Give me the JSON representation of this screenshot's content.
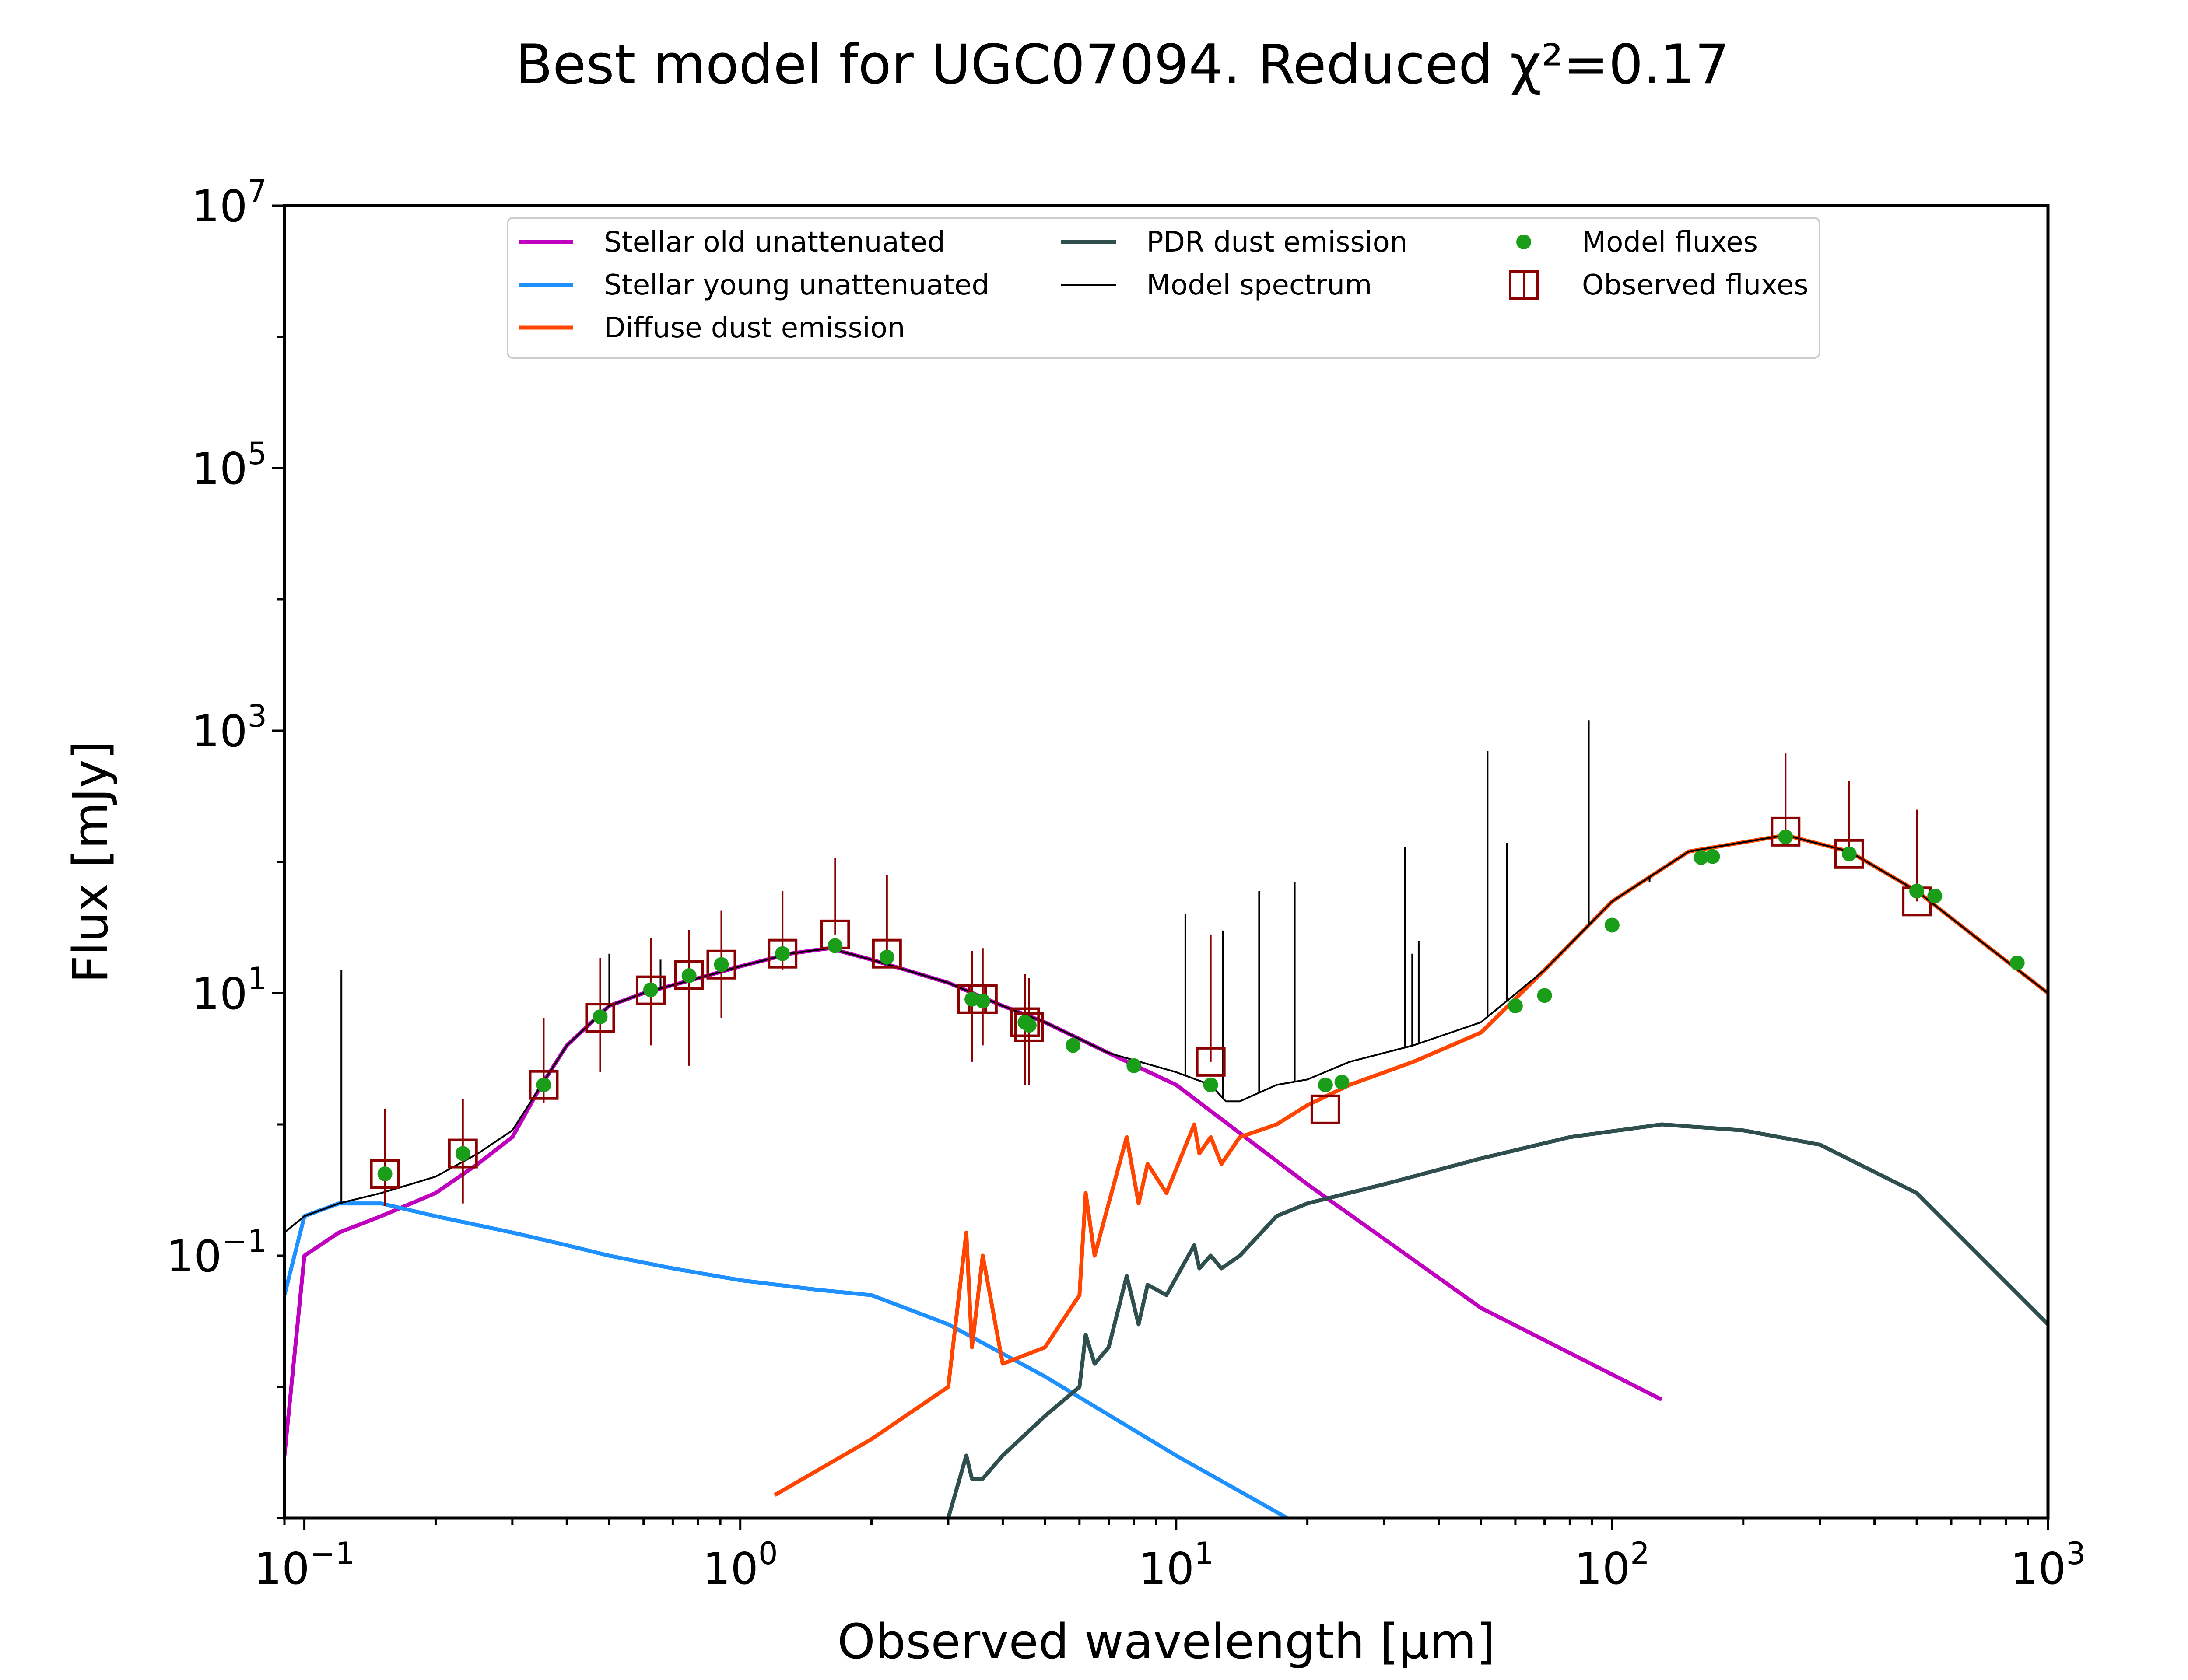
{
  "chart_data": {
    "type": "line",
    "title": "Best model for UGC07094. Reduced χ²=0.17",
    "xlabel": "Observed wavelength [μm]",
    "ylabel": "Flux [mJy]",
    "x_scale": "log",
    "y_scale": "log",
    "xlim": [
      0.09,
      1000
    ],
    "ylim": [
      0.001,
      10000000
    ],
    "x_ticks": [
      {
        "base": "10",
        "exp": "−1"
      },
      {
        "base": "10",
        "exp": "0"
      },
      {
        "base": "10",
        "exp": "1"
      },
      {
        "base": "10",
        "exp": "2"
      },
      {
        "base": "10",
        "exp": "3"
      }
    ],
    "y_ticks": [
      {
        "base": "10",
        "exp": "−1",
        "value": 0.1
      },
      {
        "base": "10",
        "exp": "1",
        "value": 10
      },
      {
        "base": "10",
        "exp": "3",
        "value": 1000
      },
      {
        "base": "10",
        "exp": "5",
        "value": 100000
      },
      {
        "base": "10",
        "exp": "7",
        "value": 10000000
      }
    ],
    "grid": false,
    "legend_position": "top-center",
    "legend": [
      {
        "label": "Stellar old unattenuated",
        "color": "#bf00bf",
        "kind": "line"
      },
      {
        "label": "Stellar young unattenuated",
        "color": "#1e90ff",
        "kind": "line"
      },
      {
        "label": "Diffuse dust emission",
        "color": "#ff4500",
        "kind": "line"
      },
      {
        "label": "PDR dust emission",
        "color": "#2f4f4f",
        "kind": "line"
      },
      {
        "label": "Model spectrum",
        "color": "#000000",
        "kind": "thin-line"
      },
      {
        "label": "Model fluxes",
        "color": "#1a9e1a",
        "kind": "dot"
      },
      {
        "label": "Observed fluxes",
        "color": "#8b0000",
        "kind": "square"
      }
    ],
    "series": [
      {
        "name": "Stellar old unattenuated",
        "color": "#bf00bf",
        "x": [
          0.09,
          0.1,
          0.12,
          0.15,
          0.2,
          0.25,
          0.3,
          0.35,
          0.4,
          0.5,
          0.6,
          0.8,
          1.0,
          1.3,
          1.6,
          2.0,
          3.0,
          4.0,
          5.0,
          7.0,
          10,
          20,
          50,
          130
        ],
        "y": [
          0.003,
          0.1,
          0.15,
          0.2,
          0.3,
          0.5,
          0.8,
          2.0,
          4.0,
          8.0,
          10,
          13,
          16,
          20,
          22,
          18,
          12,
          8,
          6,
          3.5,
          2.0,
          0.35,
          0.04,
          0.008
        ]
      },
      {
        "name": "Stellar young unattenuated",
        "color": "#1e90ff",
        "x": [
          0.09,
          0.1,
          0.12,
          0.15,
          0.2,
          0.3,
          0.4,
          0.5,
          0.7,
          1.0,
          1.5,
          2.0,
          3.0,
          5.0,
          10,
          18
        ],
        "y": [
          0.05,
          0.2,
          0.25,
          0.25,
          0.2,
          0.15,
          0.12,
          0.1,
          0.08,
          0.065,
          0.055,
          0.05,
          0.03,
          0.012,
          0.003,
          0.001
        ]
      },
      {
        "name": "Diffuse dust emission",
        "color": "#ff4500",
        "x": [
          1.2,
          2.0,
          3.0,
          3.3,
          3.4,
          3.6,
          4.0,
          5.0,
          6.0,
          6.2,
          6.5,
          7.0,
          7.7,
          8.2,
          8.6,
          9.5,
          11,
          11.3,
          12,
          12.7,
          14,
          17,
          20,
          25,
          35,
          50,
          70,
          100,
          150,
          250,
          350,
          500,
          700,
          1000
        ],
        "y": [
          0.0015,
          0.004,
          0.01,
          0.15,
          0.02,
          0.1,
          0.015,
          0.02,
          0.05,
          0.3,
          0.1,
          0.25,
          0.8,
          0.25,
          0.5,
          0.3,
          1.0,
          0.6,
          0.8,
          0.5,
          0.8,
          1.0,
          1.4,
          2.0,
          3.0,
          5.0,
          15,
          50,
          120,
          160,
          120,
          60,
          25,
          10
        ]
      },
      {
        "name": "PDR dust emission",
        "color": "#2f4f4f",
        "x": [
          3.0,
          3.3,
          3.4,
          3.6,
          4.0,
          5.0,
          6.0,
          6.2,
          6.5,
          7.0,
          7.7,
          8.2,
          8.6,
          9.5,
          11,
          11.3,
          12,
          12.7,
          14,
          17,
          20,
          30,
          50,
          80,
          130,
          200,
          300,
          500,
          1000
        ],
        "y": [
          0.001,
          0.003,
          0.002,
          0.002,
          0.003,
          0.006,
          0.01,
          0.025,
          0.015,
          0.02,
          0.07,
          0.03,
          0.06,
          0.05,
          0.12,
          0.08,
          0.1,
          0.08,
          0.1,
          0.2,
          0.25,
          0.35,
          0.55,
          0.8,
          1.0,
          0.9,
          0.7,
          0.3,
          0.03
        ]
      },
      {
        "name": "Model spectrum",
        "color": "#000000",
        "x": [
          0.09,
          0.1,
          0.12,
          0.15,
          0.2,
          0.25,
          0.3,
          0.35,
          0.4,
          0.5,
          0.6,
          0.8,
          1.0,
          1.3,
          1.6,
          2.0,
          3.0,
          4.0,
          5.0,
          7.0,
          10,
          12,
          13,
          14,
          17,
          20,
          25,
          35,
          50,
          70,
          100,
          150,
          250,
          350,
          500,
          700,
          1000
        ],
        "y": [
          0.15,
          0.2,
          0.25,
          0.3,
          0.4,
          0.6,
          0.9,
          2.0,
          4.0,
          8.0,
          10,
          13,
          16,
          20,
          22,
          18,
          12,
          8,
          6,
          3.5,
          2.5,
          2.0,
          1.5,
          1.5,
          2.0,
          2.2,
          3.0,
          4.0,
          6.0,
          15,
          50,
          120,
          160,
          120,
          60,
          25,
          10
        ]
      }
    ],
    "emission_lines": [
      {
        "x": 0.1216,
        "y": 15
      },
      {
        "x": 0.5007,
        "y": 20
      },
      {
        "x": 0.6563,
        "y": 18
      },
      {
        "x": 10.5,
        "y": 40
      },
      {
        "x": 12.8,
        "y": 30
      },
      {
        "x": 15.5,
        "y": 60
      },
      {
        "x": 18.7,
        "y": 70
      },
      {
        "x": 33.5,
        "y": 130
      },
      {
        "x": 34.8,
        "y": 20
      },
      {
        "x": 36.0,
        "y": 25
      },
      {
        "x": 51.8,
        "y": 700
      },
      {
        "x": 57.3,
        "y": 140
      },
      {
        "x": 88.4,
        "y": 1200
      },
      {
        "x": 121.9,
        "y": 70
      }
    ],
    "model_fluxes": {
      "x": [
        0.153,
        0.231,
        0.354,
        0.477,
        0.623,
        0.763,
        0.905,
        1.25,
        1.65,
        2.17,
        3.4,
        3.6,
        4.5,
        4.6,
        5.8,
        8.0,
        12.0,
        22.0,
        24.0,
        60.0,
        70.0,
        100.0,
        160.0,
        170.0,
        250.0,
        350.0,
        500.0,
        550.0,
        850.0
      ],
      "y": [
        0.42,
        0.6,
        2.0,
        6.6,
        10.6,
        13.6,
        16.5,
        20.0,
        23.0,
        18.8,
        9.0,
        8.7,
        6.0,
        5.7,
        4.0,
        2.8,
        2.0,
        2.0,
        2.1,
        8.0,
        9.6,
        33.0,
        108.0,
        110.0,
        155.0,
        115.0,
        60.0,
        55.0,
        17.0
      ]
    },
    "observed_fluxes": {
      "x": [
        0.153,
        0.231,
        0.354,
        0.477,
        0.623,
        0.763,
        0.905,
        1.25,
        1.65,
        2.17,
        3.4,
        3.6,
        4.5,
        4.6,
        12.0,
        22.0,
        250.0,
        350.0,
        500.0
      ],
      "y": [
        0.42,
        0.6,
        2.0,
        6.5,
        10.5,
        13.8,
        16.5,
        20.0,
        28.0,
        20.0,
        9.0,
        9.0,
        6.0,
        5.5,
        3.0,
        1.3,
        170.0,
        115.0,
        50.0
      ],
      "err_low": [
        0.18,
        0.35,
        0.55,
        4.0,
        6.5,
        11.0,
        10.0,
        5.0,
        0.0,
        0.0,
        6.0,
        5.0,
        4.0,
        3.5,
        0.0,
        0.0,
        0.0,
        0.0,
        0.0
      ],
      "err_high": [
        0.9,
        0.95,
        4.5,
        12.0,
        16.0,
        16.5,
        26.0,
        40.0,
        80.0,
        60.0,
        12.0,
        13.0,
        8.0,
        7.5,
        25.0,
        0.0,
        500.0,
        300.0,
        200.0
      ]
    }
  }
}
